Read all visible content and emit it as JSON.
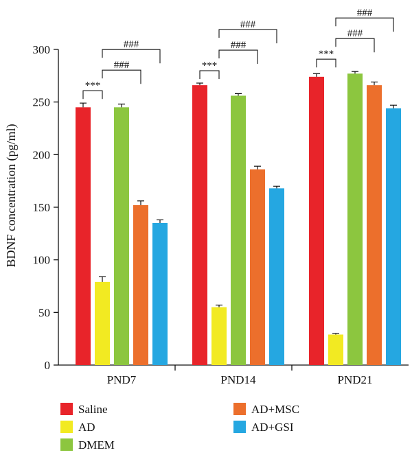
{
  "chart_data": {
    "type": "bar",
    "title": "",
    "ylabel": "BDNF concentration (pg/ml)",
    "xlabel": "",
    "ylim": [
      0,
      300
    ],
    "yticks": [
      0,
      50,
      100,
      150,
      200,
      250,
      300
    ],
    "categories": [
      "PND7",
      "PND14",
      "PND21"
    ],
    "series": [
      {
        "name": "Saline",
        "color": "#e8242a",
        "values": [
          245,
          266,
          274
        ],
        "errors": [
          4,
          2,
          3
        ]
      },
      {
        "name": "AD",
        "color": "#f2ea22",
        "values": [
          79,
          55,
          29
        ],
        "errors": [
          5,
          2,
          1
        ]
      },
      {
        "name": "DMEM",
        "color": "#8cc63f",
        "values": [
          245,
          256,
          277
        ],
        "errors": [
          3,
          2,
          2
        ]
      },
      {
        "name": "AD+MSC",
        "color": "#ec6f2c",
        "values": [
          152,
          186,
          266
        ],
        "errors": [
          4,
          3,
          3
        ]
      },
      {
        "name": "AD+GSI",
        "color": "#25a7e1",
        "values": [
          135,
          168,
          244
        ],
        "errors": [
          3,
          2,
          3
        ]
      }
    ],
    "annotations": [
      {
        "category": 0,
        "from": 0,
        "to": 1,
        "label": "***",
        "level": 0
      },
      {
        "category": 0,
        "from": 1,
        "to": 3,
        "label": "###",
        "level": 1
      },
      {
        "category": 0,
        "from": 1,
        "to": 4,
        "label": "###",
        "level": 2
      },
      {
        "category": 1,
        "from": 0,
        "to": 1,
        "label": "***",
        "level": 0
      },
      {
        "category": 1,
        "from": 1,
        "to": 3,
        "label": "###",
        "level": 1
      },
      {
        "category": 1,
        "from": 1,
        "to": 4,
        "label": "###",
        "level": 2
      },
      {
        "category": 2,
        "from": 0,
        "to": 1,
        "label": "***",
        "level": 0
      },
      {
        "category": 2,
        "from": 1,
        "to": 3,
        "label": "###",
        "level": 1
      },
      {
        "category": 2,
        "from": 1,
        "to": 4,
        "label": "###",
        "level": 2
      }
    ],
    "legend": {
      "position": "bottom",
      "columns": 2
    }
  }
}
